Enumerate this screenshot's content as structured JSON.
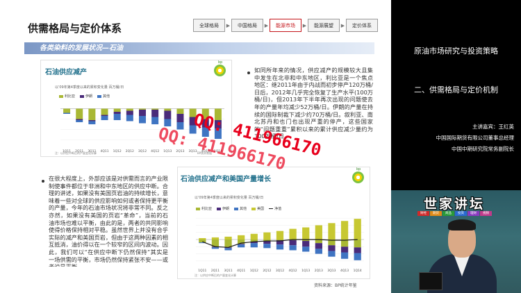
{
  "slide": {
    "title": "供需格局与定价体系",
    "nav": [
      {
        "label": "全球格局",
        "active": false
      },
      {
        "label": "中国格局",
        "active": false
      },
      {
        "label": "能源市场",
        "active": true
      },
      {
        "label": "能源展望",
        "active": false
      },
      {
        "label": "定价体系",
        "active": false
      }
    ],
    "section_banner": "各类染料的发展状况—石油",
    "chart1": {
      "title": "石油供应减产",
      "logo_text": "bp",
      "unit": "以'09年第4季度以来的累积变化量  百万桶/日",
      "source_note": "注：以供应中断后的产量变化计算",
      "watermark_source": "BP统计数据"
    },
    "chart2": {
      "title": "石油供应减产和美国产量增长",
      "logo_text": "bp",
      "unit": "以'09年第4季度以来的累积变化量  百万桶/日",
      "source_note": "注：以供应中断后的产量变化计算"
    },
    "bullet1": "如同所年来的情况，供应减产的规模较大且集中发生在北非和中东地区，利比亚是一个焦点地区：继2011年由于内战而初步停产120万桶/日后，2012年几乎完全恢复了生产水平(100万桶/日)，但2013年下半年再次出现的问题使去年的产量年均减少52万桶/日。伊朗的产量在持续的国际制裁下减少约70万桶/日。叙利亚、南北苏丹和也门也出现严重的停产，这些国家的“问题重重”累积以来的累计供应减少量约为300万桶/日。",
    "bullet2": "在很大程度上，外部应该是对供需而言的产业限制使事件都位于非洲和中东地区的供应中断。合理的讲述，如果没有美国页岩油的持续增长，意味着一些对全球的供应影响如何或者保持更平衡的产量，今年的石油市场状况将非常不同。反之亦然，如果没有美国的页岩“革命”，当前的石油市场也难以平衡，由此的是，两者的共同影响使得价格保持相对平稳。虽然世界上并没有合乎实际的减产和美国页岩，但由于这两种因素的相互抵消，油价得以在一个较窄的区间内波动。因此，我们可以“在供应中断下仍然保持”其实是一场供需的平衡，市场仍然保持紧张不安——或者说是平衡。",
    "source_footer": "资料来源：BP统计年鉴",
    "watermark_qq": "QQ: 411966170",
    "watermark_qq2": "QQ: 411966170"
  },
  "chart_data": [
    {
      "type": "bar",
      "stacked": true,
      "categories": [
        "1Q11",
        "2Q11",
        "3Q11",
        "4Q11",
        "1Q12",
        "2Q12",
        "3Q12",
        "4Q12",
        "1Q13",
        "2Q13",
        "3Q13",
        "4Q13",
        "1Q14"
      ],
      "series": [
        {
          "name": "利比亚",
          "color": "#a9b834",
          "values": [
            -0.4,
            -1.0,
            -1.1,
            -0.6,
            -0.3,
            -0.2,
            -0.1,
            -0.1,
            -0.2,
            -0.5,
            -0.8,
            -1.0,
            -1.1
          ]
        },
        {
          "name": "伊朗",
          "color": "#4a2b7a",
          "values": [
            0,
            -0.1,
            -0.1,
            -0.1,
            -0.2,
            -0.4,
            -0.6,
            -0.7,
            -0.8,
            -0.8,
            -0.8,
            -0.8,
            -0.8
          ]
        },
        {
          "name": "其他",
          "color": "#3f74c2",
          "values": [
            -0.1,
            -0.2,
            -0.3,
            -0.4,
            -0.6,
            -0.6,
            -0.7,
            -0.7,
            -0.7,
            -0.7,
            -0.8,
            -0.9,
            -1.0
          ]
        }
      ],
      "ylim": [
        -3.5,
        0.5
      ],
      "title": "石油供应减产"
    },
    {
      "type": "bar",
      "stacked": true,
      "categories": [
        "1Q11",
        "2Q11",
        "3Q11",
        "4Q11",
        "1Q12",
        "2Q12",
        "3Q12",
        "4Q12",
        "1Q13",
        "2Q13",
        "3Q13",
        "4Q13",
        "1Q14"
      ],
      "series": [
        {
          "name": "利比亚",
          "color": "#a9b834",
          "values": [
            -0.4,
            -1.0,
            -1.1,
            -0.6,
            -0.3,
            -0.2,
            -0.1,
            -0.1,
            -0.2,
            -0.5,
            -0.8,
            -1.0,
            -1.1
          ]
        },
        {
          "name": "伊朗",
          "color": "#4a2b7a",
          "values": [
            0,
            -0.1,
            -0.1,
            -0.1,
            -0.2,
            -0.4,
            -0.6,
            -0.7,
            -0.8,
            -0.8,
            -0.8,
            -0.8,
            -0.8
          ]
        },
        {
          "name": "其他",
          "color": "#3f74c2",
          "values": [
            -0.1,
            -0.2,
            -0.3,
            -0.4,
            -0.6,
            -0.6,
            -0.7,
            -0.7,
            -0.7,
            -0.7,
            -0.8,
            -0.9,
            -1.0
          ]
        },
        {
          "name": "美国",
          "color": "#c7c832",
          "values": [
            0.2,
            0.3,
            0.4,
            0.6,
            0.8,
            1.0,
            1.2,
            1.5,
            1.7,
            2.0,
            2.3,
            2.6,
            2.9
          ]
        }
      ],
      "line": {
        "name": "净值",
        "color": "#1a1a1a",
        "values": [
          -0.3,
          -1.0,
          -1.1,
          -0.5,
          -0.3,
          -0.2,
          -0.2,
          0,
          0,
          0,
          -0.1,
          -0.1,
          0
        ]
      },
      "ylim": [
        -3.5,
        3.5
      ],
      "title": "石油供应减产和美国产量增长"
    }
  ],
  "right": {
    "title1": "原油市场研究与投资策略",
    "title2": "二、供需格局与定价机制",
    "speaker": [
      "主讲嘉宾：王红英",
      "中国国际期货有限公司董事总经理",
      "中国中期研究院常务副院长"
    ],
    "video_logo": "世家讲坛",
    "video_logo_sub": [
      "财经",
      "期货",
      "商品",
      "投资",
      "理财",
      "视频"
    ]
  }
}
